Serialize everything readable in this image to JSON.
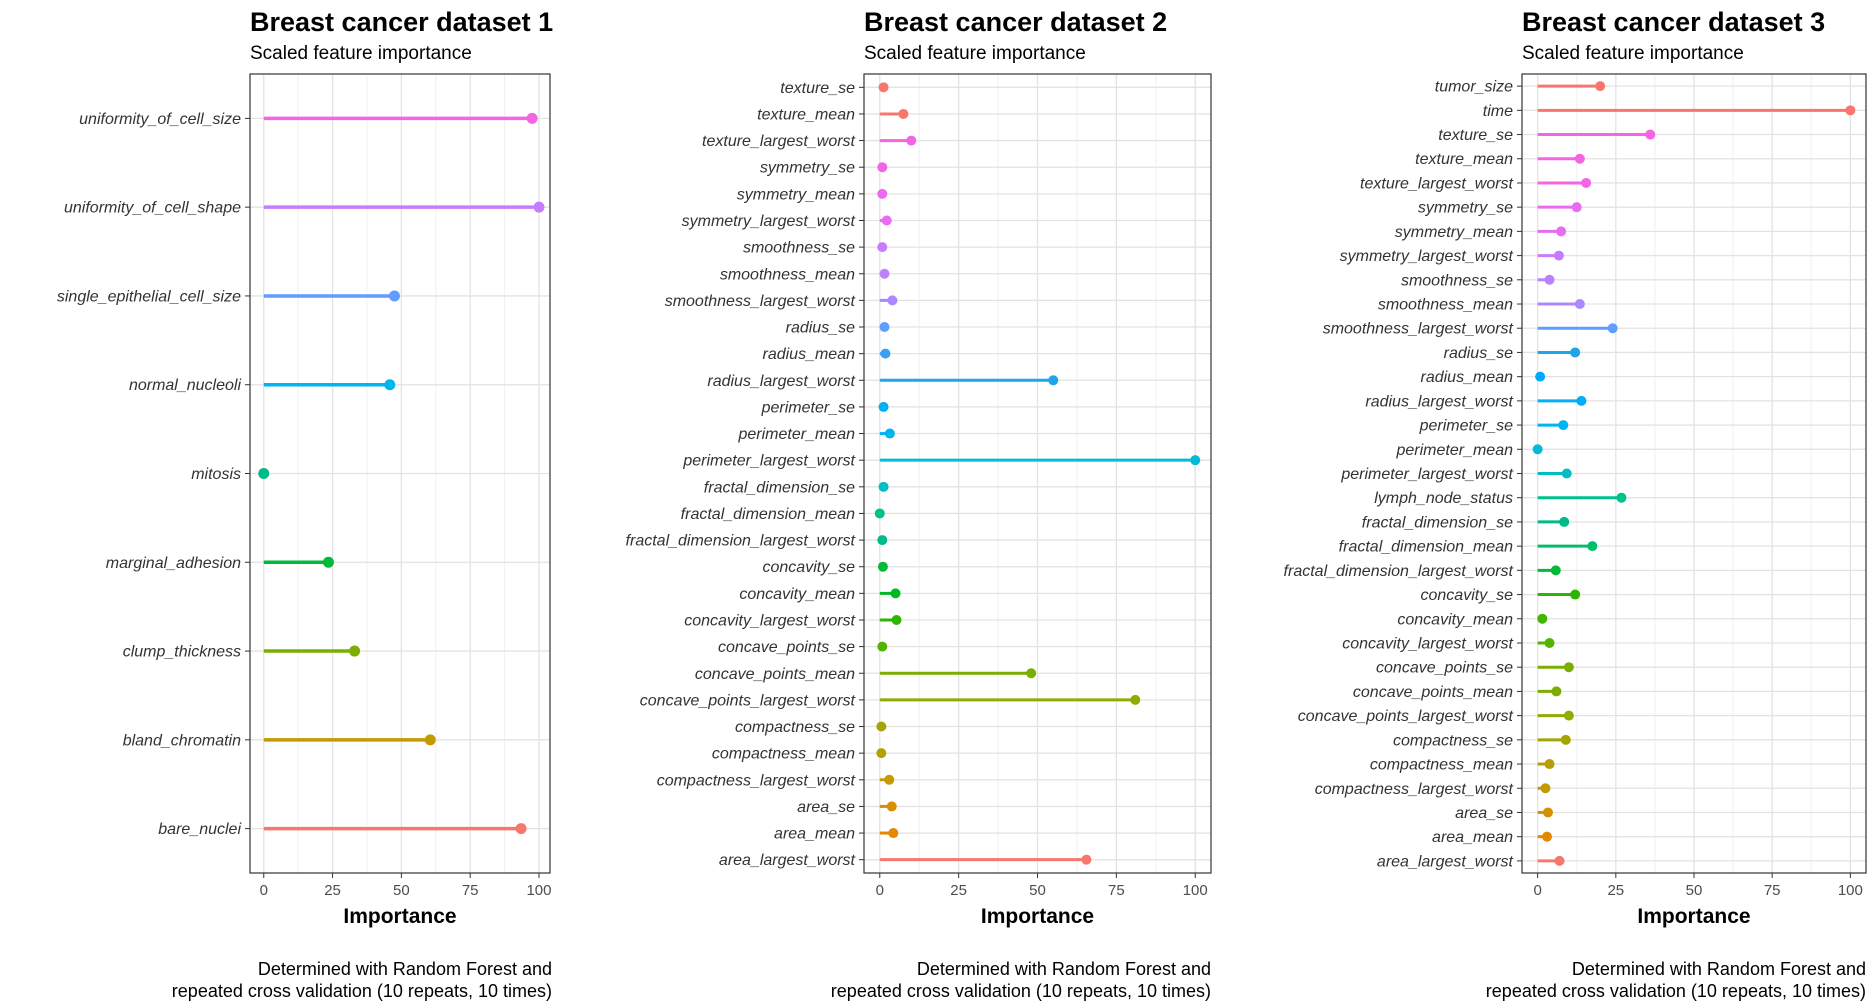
{
  "chart_data": [
    {
      "type": "lollipop",
      "title": "Breast cancer dataset 1",
      "subtitle": "Scaled feature importance",
      "xlabel": "Importance",
      "ylabel": "",
      "caption_line1": "Determined with Random Forest and",
      "caption_line2": "repeated cross validation (10 repeats, 10 times)",
      "xlim": [
        -5,
        104
      ],
      "xticks": [
        "0",
        "25",
        "50",
        "75",
        "100"
      ],
      "tick_values": [
        0,
        25,
        50,
        75,
        100
      ],
      "grid": true,
      "categories": [
        "uniformity_of_cell_size",
        "uniformity_of_cell_shape",
        "single_epithelial_cell_size",
        "normal_nucleoli",
        "mitosis",
        "marginal_adhesion",
        "clump_thickness",
        "bland_chromatin",
        "bare_nuclei"
      ],
      "values": [
        97.5,
        100,
        47.5,
        45.8,
        0,
        23.5,
        33,
        60.5,
        93.5
      ],
      "colors": [
        "#F564E3",
        "#C77CFF",
        "#619CFF",
        "#00B4EF",
        "#00BA87",
        "#00BA38",
        "#7CAE00",
        "#C49A00",
        "#F8766D"
      ]
    },
    {
      "type": "lollipop",
      "title": "Breast cancer dataset 2",
      "subtitle": "Scaled feature importance",
      "xlabel": "Importance",
      "ylabel": "",
      "caption_line1": "Determined with Random Forest and",
      "caption_line2": "repeated cross validation (10 repeats, 10 times)",
      "xlim": [
        -5,
        105
      ],
      "xticks": [
        "0",
        "25",
        "50",
        "75",
        "100"
      ],
      "tick_values": [
        0,
        25,
        50,
        75,
        100
      ],
      "grid": true,
      "categories": [
        "texture_se",
        "texture_mean",
        "texture_largest_worst",
        "symmetry_se",
        "symmetry_mean",
        "symmetry_largest_worst",
        "smoothness_se",
        "smoothness_mean",
        "smoothness_largest_worst",
        "radius_se",
        "radius_mean",
        "radius_largest_worst",
        "perimeter_se",
        "perimeter_mean",
        "perimeter_largest_worst",
        "fractal_dimension_se",
        "fractal_dimension_mean",
        "fractal_dimension_largest_worst",
        "concavity_se",
        "concavity_mean",
        "concavity_largest_worst",
        "concave_points_se",
        "concave_points_mean",
        "concave_points_largest_worst",
        "compactness_se",
        "compactness_mean",
        "compactness_largest_worst",
        "area_se",
        "area_mean",
        "area_largest_worst"
      ],
      "values": [
        1.2,
        7.5,
        10,
        0.8,
        0.8,
        2.2,
        0.8,
        1.5,
        4,
        1.5,
        1.8,
        55,
        1.2,
        3.2,
        100,
        1.2,
        0,
        0.8,
        1,
        5,
        5.3,
        0.8,
        48,
        81,
        0.5,
        0.5,
        3,
        3.8,
        4.3,
        65.5
      ],
      "colors": [
        "#F8766D",
        "#F8766D",
        "#F564E3",
        "#F564E3",
        "#EA6AF1",
        "#E76BF3",
        "#C77CFF",
        "#B983FF",
        "#AC88FF",
        "#619CFF",
        "#3C9FF2",
        "#1FA4EA",
        "#00B0F6",
        "#00B4EF",
        "#00BCD8",
        "#00BFC4",
        "#00C08B",
        "#00BA87",
        "#00BA38",
        "#00B81F",
        "#2DB600",
        "#53B400",
        "#7CAE00",
        "#93AA00",
        "#A3A500",
        "#B79F00",
        "#C49A00",
        "#D89000",
        "#E58700",
        "#F8766D"
      ]
    },
    {
      "type": "lollipop",
      "title": "Breast cancer dataset 3",
      "subtitle": "Scaled feature importance",
      "xlabel": "Importance",
      "ylabel": "",
      "caption_line1": "Determined with Random Forest and",
      "caption_line2": "repeated cross validation (10 repeats, 10 times)",
      "xlim": [
        -5,
        105
      ],
      "xticks": [
        "0",
        "25",
        "50",
        "75",
        "100"
      ],
      "tick_values": [
        0,
        25,
        50,
        75,
        100
      ],
      "grid": true,
      "categories": [
        "tumor_size",
        "time",
        "texture_se",
        "texture_mean",
        "texture_largest_worst",
        "symmetry_se",
        "symmetry_mean",
        "symmetry_largest_worst",
        "smoothness_se",
        "smoothness_mean",
        "smoothness_largest_worst",
        "radius_se",
        "radius_mean",
        "radius_largest_worst",
        "perimeter_se",
        "perimeter_mean",
        "perimeter_largest_worst",
        "lymph_node_status",
        "fractal_dimension_se",
        "fractal_dimension_mean",
        "fractal_dimension_largest_worst",
        "concavity_se",
        "concavity_mean",
        "concavity_largest_worst",
        "concave_points_se",
        "concave_points_mean",
        "concave_points_largest_worst",
        "compactness_se",
        "compactness_mean",
        "compactness_largest_worst",
        "area_se",
        "area_mean",
        "area_largest_worst"
      ],
      "values": [
        20,
        100,
        36,
        13.5,
        15.5,
        12.5,
        7.5,
        6.8,
        3.8,
        13.5,
        24,
        12,
        0.8,
        14,
        8.2,
        0,
        9.3,
        26.8,
        8.5,
        17.5,
        5.8,
        12,
        1.5,
        3.8,
        10,
        6,
        10,
        9,
        3.8,
        2.5,
        3.3,
        3,
        7
      ],
      "colors": [
        "#F8766D",
        "#F8766D",
        "#F564E3",
        "#F564E3",
        "#F564E3",
        "#EA6AF1",
        "#E76BF3",
        "#C77CFF",
        "#B983FF",
        "#AC88FF",
        "#619CFF",
        "#1FA4EA",
        "#00A9FF",
        "#00B0F6",
        "#00B4EF",
        "#00BCD8",
        "#00BFC4",
        "#00C08B",
        "#00BA87",
        "#00BE67",
        "#00BA38",
        "#2DB600",
        "#3FB600",
        "#53B400",
        "#7CAE00",
        "#7CAE00",
        "#93AA00",
        "#A3A500",
        "#B79F00",
        "#C49A00",
        "#D89000",
        "#E58700",
        "#F8766D"
      ]
    }
  ]
}
